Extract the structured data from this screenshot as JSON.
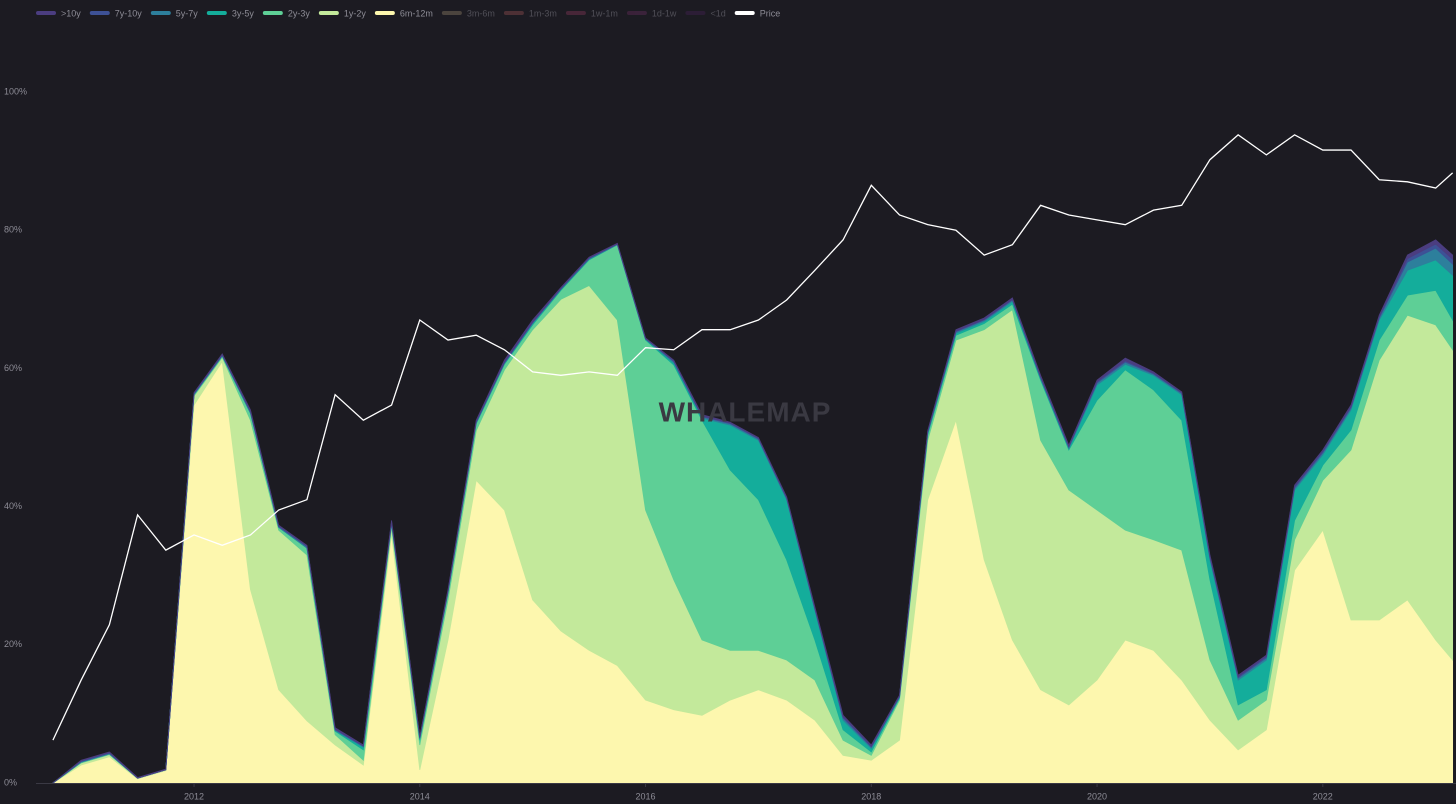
{
  "chart_data": {
    "type": "area",
    "watermark": "WHALEMAP",
    "x": [
      2010.75,
      2011.0,
      2011.25,
      2011.5,
      2011.75,
      2012.0,
      2012.25,
      2012.5,
      2012.75,
      2013.0,
      2013.25,
      2013.5,
      2013.75,
      2014.0,
      2014.25,
      2014.5,
      2014.75,
      2015.0,
      2015.25,
      2015.5,
      2015.75,
      2016.0,
      2016.25,
      2016.5,
      2016.75,
      2017.0,
      2017.25,
      2017.5,
      2017.75,
      2018.0,
      2018.25,
      2018.5,
      2018.75,
      2019.0,
      2019.25,
      2019.5,
      2019.75,
      2020.0,
      2020.25,
      2020.5,
      2020.75,
      2021.0,
      2021.25,
      2021.5,
      2021.75,
      2022.0,
      2022.25,
      2022.5,
      2022.75,
      2023.0,
      2023.15
    ],
    "xlim": [
      2010.6,
      2023.18
    ],
    "xticks": [
      2012,
      2014,
      2016,
      2018,
      2020,
      2022
    ],
    "ylim": [
      0,
      100
    ],
    "yticks": [
      {
        "value": 0,
        "label": "0%"
      },
      {
        "value": 20,
        "label": "20%"
      },
      {
        "value": 40,
        "label": "40%"
      },
      {
        "value": 60,
        "label": "60%"
      },
      {
        "value": 80,
        "label": "80%"
      },
      {
        "value": 100,
        "label": "100%"
      }
    ],
    "series": [
      {
        "name": ">10y",
        "color": "#4b3d80",
        "values": [
          0,
          0.1,
          0.1,
          0.1,
          0.1,
          0.1,
          0.1,
          0.2,
          0.1,
          0.1,
          0.2,
          0.1,
          0.2,
          0.1,
          0.2,
          0.2,
          0.3,
          0.3,
          0.1,
          0.1,
          0.1,
          0.1,
          0.1,
          0.2,
          0.1,
          0.1,
          0.1,
          0.2,
          0.2,
          0.2,
          0.1,
          0.1,
          0.2,
          0.2,
          0.2,
          0.2,
          0.2,
          0.2,
          0.4,
          0.2,
          0.1,
          0.2,
          0.2,
          0.2,
          0.2,
          0.2,
          0.2,
          0.2,
          0.5,
          0.6,
          0.6
        ]
      },
      {
        "name": "7y-10y",
        "color": "#3d5196",
        "values": [
          0,
          0.1,
          0.1,
          0,
          0,
          0.1,
          0.1,
          0.1,
          0.1,
          0.1,
          0.1,
          0.1,
          0.1,
          0.1,
          0.1,
          0.1,
          0.1,
          0.1,
          0.1,
          0.1,
          0,
          0,
          0.1,
          0.1,
          0.1,
          0.1,
          0.1,
          0.1,
          0.2,
          0.1,
          0.1,
          0.1,
          0.1,
          0.1,
          0.1,
          0.1,
          0.1,
          0.2,
          0.2,
          0.1,
          0.1,
          0.2,
          0.2,
          0.2,
          0.2,
          0.2,
          0.2,
          0.2,
          0.5,
          0.6,
          0.7
        ]
      },
      {
        "name": "5y-7y",
        "color": "#2d7f9c",
        "values": [
          0,
          0.1,
          0.1,
          0,
          0,
          0.1,
          0.1,
          0.2,
          0.1,
          0.2,
          0.1,
          0.1,
          0.1,
          0.1,
          0.1,
          0.1,
          0.1,
          0.1,
          0.1,
          0.1,
          0.1,
          0.1,
          0.2,
          0.2,
          0.2,
          0.2,
          0.2,
          0.2,
          0.3,
          0.2,
          0.1,
          0.2,
          0.2,
          0.2,
          0.2,
          0.2,
          0.2,
          0.3,
          0.3,
          0.2,
          0.2,
          0.3,
          0.3,
          0.3,
          0.3,
          0.3,
          0.3,
          0.3,
          1.2,
          1.7,
          1.6
        ]
      },
      {
        "name": "3y-5y",
        "color": "#14ad9b",
        "values": [
          0,
          0,
          0,
          0,
          0,
          0,
          0,
          0,
          0,
          0,
          0.1,
          0.4,
          0.1,
          0.2,
          0.1,
          0.1,
          0.1,
          0.2,
          0.1,
          0.1,
          0,
          0.1,
          0.3,
          0.3,
          6.5,
          8.6,
          8.7,
          4.3,
          1.4,
          0.5,
          0.1,
          0.2,
          0.3,
          0.3,
          0.4,
          0.2,
          0.2,
          2.2,
          0.8,
          2.1,
          3.7,
          2.9,
          3.6,
          4.3,
          4.4,
          1.5,
          2.9,
          2.9,
          3.6,
          4.4,
          6.5
        ]
      },
      {
        "name": "2y-3y",
        "color": "#5ecf96",
        "values": [
          0,
          0.1,
          0.1,
          0,
          0,
          0.2,
          0.2,
          1.0,
          0.4,
          1,
          0.5,
          1.5,
          0.5,
          0.7,
          1,
          1,
          0.8,
          0.7,
          1.3,
          3.7,
          10.9,
          24.6,
          31.1,
          31.8,
          26.1,
          21.8,
          14.5,
          5.8,
          1.5,
          0.5,
          0.3,
          0.8,
          0.7,
          0.9,
          0.8,
          8.7,
          5.8,
          15.9,
          23.2,
          21.7,
          18.8,
          11.6,
          2.2,
          1.5,
          2.8,
          2.2,
          2.9,
          2.9,
          2.9,
          5,
          4.3
        ]
      },
      {
        "name": "1y-2y",
        "color": "#c3e99b",
        "values": [
          0,
          0.3,
          0.3,
          0.1,
          0.1,
          1.3,
          0.6,
          24.5,
          23.1,
          24,
          1.5,
          0.7,
          1,
          3.6,
          5.8,
          7.2,
          20.3,
          39.1,
          48,
          52.8,
          50,
          27.5,
          18.8,
          10.9,
          7.2,
          5.7,
          5.8,
          5.8,
          2.2,
          0.7,
          5.8,
          8.6,
          11.6,
          33.3,
          47.8,
          36.1,
          31.1,
          24.6,
          15.9,
          16,
          18.8,
          8.7,
          4.3,
          4.3,
          4.4,
          7.2,
          24.6,
          37.6,
          41.2,
          45.6,
          44.9
        ]
      },
      {
        "name": "6m-12m",
        "color": "#fdf7ae",
        "values": [
          0,
          2.6,
          3.8,
          0.6,
          1.8,
          54.7,
          61,
          28,
          13.5,
          9,
          5.5,
          2.6,
          36,
          1.9,
          20.7,
          43.8,
          39.5,
          26.5,
          22,
          19.2,
          17,
          12,
          10.6,
          9.8,
          12,
          13.5,
          12,
          9.1,
          4,
          3.3,
          6.2,
          41,
          52.5,
          32.3,
          20.7,
          13.5,
          11.3,
          14.9,
          20.7,
          19.2,
          14.9,
          9.1,
          4.8,
          7.7,
          30.8,
          36.6,
          23.6,
          23.6,
          26.5,
          20.7,
          17.8
        ]
      },
      {
        "name": "3m-6m",
        "color": "#857760",
        "hidden": true
      },
      {
        "name": "1m-3m",
        "color": "#8a4b4d",
        "hidden": true
      },
      {
        "name": "1w-1m",
        "color": "#7b3553",
        "hidden": true
      },
      {
        "name": "1d-1w",
        "color": "#5f2b57",
        "hidden": true
      },
      {
        "name": "<1d",
        "color": "#40214f",
        "hidden": true
      },
      {
        "name": "Price",
        "color": "#ffffff",
        "type": "line",
        "values": [
          6.2,
          14.9,
          22.9,
          38.8,
          33.7,
          35.9,
          34.4,
          35.9,
          39.5,
          41,
          56.2,
          52.5,
          54.7,
          67,
          64.1,
          64.8,
          62.7,
          59.5,
          59,
          59.5,
          59,
          63,
          62.7,
          65.6,
          65.6,
          67,
          69.9,
          74.2,
          78.6,
          86.5,
          82.2,
          80.8,
          80,
          76.4,
          77.9,
          83.6,
          82.2,
          81.5,
          80.8,
          82.9,
          83.6,
          90.2,
          93.8,
          90.9,
          93.8,
          91.6,
          91.6,
          87.3,
          87,
          86.1,
          88.3
        ]
      }
    ]
  }
}
